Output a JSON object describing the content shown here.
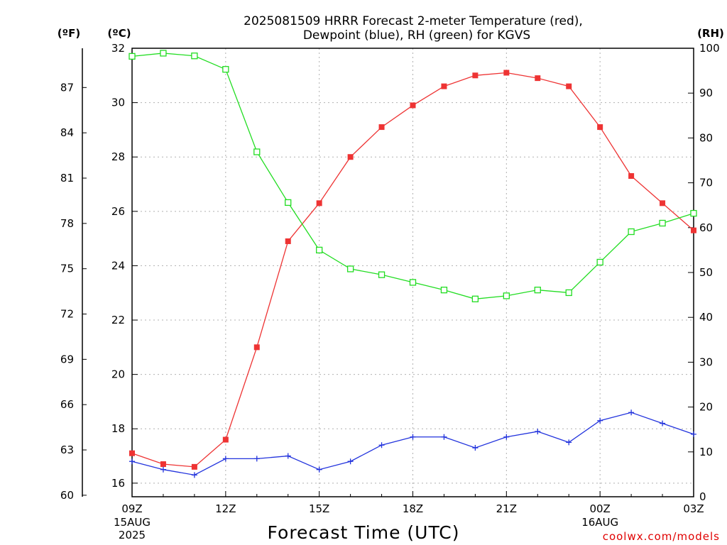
{
  "chart_data": {
    "type": "line",
    "title_line1": "2025081509 HRRR Forecast 2-meter Temperature (red),",
    "title_line2": "Dewpoint (blue), RH (green) for KGVS",
    "xlabel": "Forecast Time (UTC)",
    "credit": "coolwx.com/models",
    "left_outer_unit": "(ºF)",
    "left_inner_unit": "(ºC)",
    "right_unit": "(RH)",
    "x": [
      0,
      1,
      2,
      3,
      4,
      5,
      6,
      7,
      8,
      9,
      10,
      11,
      12,
      13,
      14,
      15,
      16,
      17,
      18
    ],
    "x_ticks": [
      {
        "x": 0,
        "label": "09Z",
        "date": [
          "15AUG",
          "2025"
        ]
      },
      {
        "x": 3,
        "label": "12Z"
      },
      {
        "x": 6,
        "label": "15Z"
      },
      {
        "x": 9,
        "label": "18Z"
      },
      {
        "x": 12,
        "label": "21Z"
      },
      {
        "x": 15,
        "label": "00Z",
        "date": [
          "16AUG"
        ]
      },
      {
        "x": 18,
        "label": "03Z"
      }
    ],
    "celsius_axis": {
      "range": [
        15.5,
        32
      ],
      "ticks": [
        16,
        18,
        20,
        22,
        24,
        26,
        28,
        30,
        32
      ]
    },
    "fahrenheit_axis": {
      "ticks": [
        60,
        63,
        66,
        69,
        72,
        75,
        78,
        81,
        84,
        87
      ]
    },
    "rh_axis": {
      "range": [
        0,
        100
      ],
      "ticks": [
        0,
        10,
        20,
        30,
        40,
        50,
        60,
        70,
        80,
        90,
        100
      ]
    },
    "series": [
      {
        "name": "Temperature",
        "axis": "celsius",
        "color": "#ee3333",
        "marker": "filled-square",
        "values": [
          17.1,
          16.7,
          16.6,
          17.6,
          21.0,
          24.9,
          26.3,
          28.0,
          29.1,
          29.9,
          30.6,
          31.0,
          31.1,
          30.9,
          30.6,
          29.1,
          27.3,
          26.3,
          25.3
        ]
      },
      {
        "name": "Dewpoint",
        "axis": "celsius",
        "color": "#2233dd",
        "marker": "plus",
        "values": [
          16.8,
          16.5,
          16.3,
          16.9,
          16.9,
          17.0,
          16.5,
          16.8,
          17.4,
          17.7,
          17.7,
          17.3,
          17.7,
          17.9,
          17.5,
          18.3,
          18.6,
          18.2,
          17.8
        ]
      },
      {
        "name": "RH",
        "axis": "rh",
        "color": "#22dd22",
        "marker": "open-square",
        "values": [
          98.2,
          98.9,
          98.3,
          95.3,
          76.9,
          65.6,
          55.0,
          50.8,
          49.5,
          47.8,
          46.1,
          44.1,
          44.8,
          46.1,
          45.5,
          52.3,
          59.1,
          61.0,
          63.2
        ]
      }
    ],
    "grid": true
  }
}
